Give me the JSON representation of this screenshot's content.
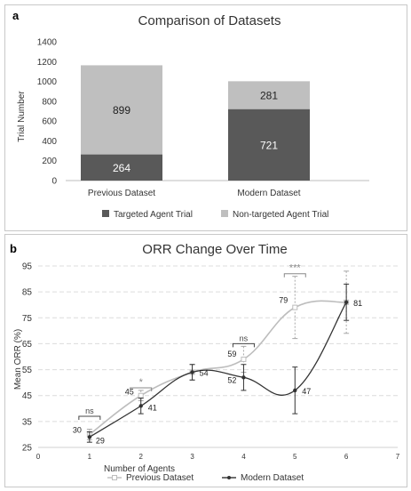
{
  "panel_labels": {
    "a": "a",
    "b": "b"
  },
  "chart_data": [
    {
      "type": "bar",
      "stacked": true,
      "title": "Comparison of Datasets",
      "xlabel": "",
      "ylabel": "Trial Number",
      "ylim": [
        0,
        1400
      ],
      "yticks": [
        0,
        200,
        400,
        600,
        800,
        1000,
        1200,
        1400
      ],
      "categories": [
        "Previous Dataset",
        "Modern Dataset"
      ],
      "series": [
        {
          "name": "Targeted Agent Trial",
          "values": [
            264,
            721
          ],
          "color": "#595959",
          "label_color": "#ffffff"
        },
        {
          "name": "Non-targeted Agent Trial",
          "values": [
            899,
            281
          ],
          "color": "#bfbfbf",
          "label_color": "#222222"
        }
      ],
      "legend": "bottom",
      "grid": false
    },
    {
      "type": "line",
      "title": "ORR Change Over Time",
      "xlabel": "Number of Agents",
      "ylabel": "Mean ORR (%)",
      "xlim": [
        0,
        7
      ],
      "ylim": [
        25,
        95
      ],
      "xticks": [
        0,
        1,
        2,
        3,
        4,
        5,
        6,
        7
      ],
      "yticks": [
        25,
        35,
        45,
        55,
        65,
        75,
        85,
        95
      ],
      "grid": "dashed-horizontal",
      "legend": "bottom",
      "series": [
        {
          "name": "Previous Dataset",
          "color": "#bdbdbd",
          "marker": "open-square",
          "x": [
            1,
            2,
            3,
            4,
            5,
            6
          ],
          "y": [
            30,
            45,
            54,
            59,
            79,
            81
          ],
          "labels": [
            "30",
            "45",
            "",
            "59",
            "79",
            ""
          ],
          "err": [
            2,
            2,
            3,
            5,
            12,
            12
          ]
        },
        {
          "name": "Modern Dataset",
          "color": "#333333",
          "marker": "dot",
          "x": [
            1,
            2,
            3,
            4,
            5,
            6
          ],
          "y": [
            29,
            41,
            54,
            52,
            47,
            81
          ],
          "labels": [
            "29",
            "41",
            "54",
            "52",
            "47",
            "81"
          ],
          "err": [
            2,
            3,
            3,
            5,
            9,
            7
          ]
        }
      ],
      "significance": [
        {
          "x": 1,
          "y": 37,
          "text": "ns"
        },
        {
          "x": 2,
          "y": 48,
          "text": "*"
        },
        {
          "x": 4,
          "y": 65,
          "text": "ns"
        },
        {
          "x": 5,
          "y": 92,
          "text": "***"
        }
      ]
    }
  ]
}
